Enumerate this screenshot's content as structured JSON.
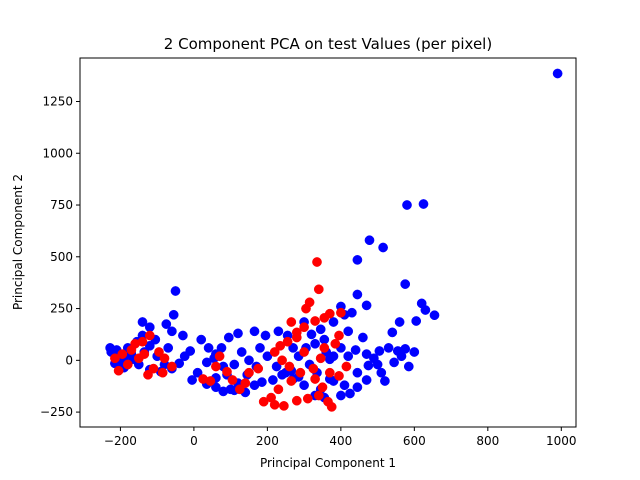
{
  "chart_data": {
    "type": "scatter",
    "title": "2 Component PCA on test Values (per pixel)",
    "xlabel": "Principal Component 1",
    "ylabel": "Principal Component 2",
    "xlim": [
      -310,
      1040
    ],
    "ylim": [
      -322,
      1460
    ],
    "xticks": [
      -200,
      0,
      200,
      400,
      600,
      800,
      1000
    ],
    "yticks": [
      -250,
      0,
      250,
      500,
      750,
      1000,
      1250
    ],
    "grid": false,
    "series": [
      {
        "color": "#0000ff",
        "points": [
          [
            990,
            1385
          ],
          [
            580,
            750
          ],
          [
            625,
            755
          ],
          [
            478,
            580
          ],
          [
            515,
            545
          ],
          [
            445,
            485
          ],
          [
            575,
            368
          ],
          [
            620,
            275
          ],
          [
            630,
            243
          ],
          [
            655,
            218
          ],
          [
            605,
            190
          ],
          [
            445,
            318
          ],
          [
            470,
            265
          ],
          [
            400,
            260
          ],
          [
            560,
            185
          ],
          [
            540,
            135
          ],
          [
            430,
            230
          ],
          [
            410,
            220
          ],
          [
            380,
            185
          ],
          [
            345,
            150
          ],
          [
            300,
            185
          ],
          [
            320,
            125
          ],
          [
            305,
            60
          ],
          [
            285,
            20
          ],
          [
            330,
            80
          ],
          [
            360,
            40
          ],
          [
            380,
            20
          ],
          [
            400,
            60
          ],
          [
            420,
            20
          ],
          [
            440,
            50
          ],
          [
            470,
            30
          ],
          [
            490,
            10
          ],
          [
            505,
            45
          ],
          [
            530,
            60
          ],
          [
            555,
            45
          ],
          [
            575,
            55
          ],
          [
            600,
            40
          ],
          [
            585,
            -30
          ],
          [
            510,
            -60
          ],
          [
            470,
            -95
          ],
          [
            445,
            -130
          ],
          [
            400,
            -170
          ],
          [
            380,
            -100
          ],
          [
            345,
            -140
          ],
          [
            300,
            -120
          ],
          [
            270,
            -90
          ],
          [
            250,
            -60
          ],
          [
            225,
            -30
          ],
          [
            200,
            20
          ],
          [
            180,
            60
          ],
          [
            170,
            -30
          ],
          [
            145,
            -70
          ],
          [
            120,
            -110
          ],
          [
            100,
            -140
          ],
          [
            90,
            -70
          ],
          [
            80,
            -30
          ],
          [
            60,
            30
          ],
          [
            40,
            60
          ],
          [
            35,
            -10
          ],
          [
            20,
            100
          ],
          [
            -10,
            45
          ],
          [
            -25,
            20
          ],
          [
            -40,
            -15
          ],
          [
            -60,
            -40
          ],
          [
            -80,
            -20
          ],
          [
            -100,
            20
          ],
          [
            -120,
            70
          ],
          [
            -140,
            120
          ],
          [
            -155,
            90
          ],
          [
            -170,
            30
          ],
          [
            -190,
            10
          ],
          [
            -210,
            50
          ],
          [
            -225,
            40
          ],
          [
            -228,
            60
          ],
          [
            -215,
            -15
          ],
          [
            -190,
            -35
          ],
          [
            -150,
            -20
          ],
          [
            -120,
            -45
          ],
          [
            -90,
            -55
          ],
          [
            -70,
            60
          ],
          [
            -60,
            140
          ],
          [
            -120,
            160
          ],
          [
            -140,
            185
          ],
          [
            -75,
            175
          ],
          [
            -50,
            335
          ],
          [
            -55,
            220
          ],
          [
            -30,
            120
          ],
          [
            10,
            -60
          ],
          [
            -5,
            -95
          ],
          [
            35,
            -115
          ],
          [
            60,
            -130
          ],
          [
            80,
            -150
          ],
          [
            110,
            -145
          ],
          [
            140,
            -155
          ],
          [
            165,
            -120
          ],
          [
            185,
            -105
          ],
          [
            215,
            -95
          ],
          [
            240,
            -70
          ],
          [
            265,
            -50
          ],
          [
            285,
            -80
          ],
          [
            330,
            -170
          ],
          [
            355,
            -180
          ],
          [
            425,
            -160
          ],
          [
            520,
            -100
          ],
          [
            475,
            -25
          ],
          [
            370,
            5
          ],
          [
            255,
            120
          ],
          [
            230,
            140
          ],
          [
            195,
            120
          ],
          [
            165,
            140
          ],
          [
            120,
            130
          ],
          [
            95,
            110
          ],
          [
            75,
            60
          ],
          [
            55,
            10
          ],
          [
            130,
            40
          ],
          [
            150,
            0
          ],
          [
            110,
            -20
          ],
          [
            60,
            -85
          ],
          [
            -165,
            5
          ],
          [
            -200,
            -20
          ],
          [
            -180,
            60
          ],
          [
            -105,
            100
          ],
          [
            -135,
            40
          ],
          [
            270,
            60
          ],
          [
            315,
            -20
          ],
          [
            335,
            -60
          ],
          [
            370,
            -90
          ],
          [
            410,
            -120
          ],
          [
            445,
            -60
          ],
          [
            500,
            -20
          ],
          [
            545,
            -10
          ],
          [
            565,
            20
          ],
          [
            460,
            110
          ],
          [
            420,
            140
          ],
          [
            355,
            100
          ]
        ]
      },
      {
        "color": "#ff0000",
        "points": [
          [
            335,
            475
          ],
          [
            340,
            343
          ],
          [
            315,
            280
          ],
          [
            305,
            250
          ],
          [
            370,
            225
          ],
          [
            400,
            230
          ],
          [
            355,
            205
          ],
          [
            330,
            190
          ],
          [
            300,
            160
          ],
          [
            265,
            185
          ],
          [
            280,
            110
          ],
          [
            255,
            90
          ],
          [
            235,
            70
          ],
          [
            220,
            40
          ],
          [
            240,
            0
          ],
          [
            260,
            -30
          ],
          [
            290,
            -60
          ],
          [
            265,
            -100
          ],
          [
            230,
            -140
          ],
          [
            210,
            -180
          ],
          [
            190,
            -200
          ],
          [
            220,
            -215
          ],
          [
            245,
            -220
          ],
          [
            280,
            -195
          ],
          [
            310,
            -185
          ],
          [
            340,
            -170
          ],
          [
            365,
            -200
          ],
          [
            375,
            -225
          ],
          [
            330,
            -90
          ],
          [
            325,
            -40
          ],
          [
            345,
            10
          ],
          [
            355,
            60
          ],
          [
            385,
            80
          ],
          [
            395,
            120
          ],
          [
            370,
            -60
          ],
          [
            350,
            -130
          ],
          [
            175,
            -40
          ],
          [
            150,
            -60
          ],
          [
            140,
            -110
          ],
          [
            125,
            -140
          ],
          [
            105,
            -95
          ],
          [
            90,
            -55
          ],
          [
            70,
            20
          ],
          [
            60,
            -30
          ],
          [
            45,
            -100
          ],
          [
            25,
            -90
          ],
          [
            -60,
            -30
          ],
          [
            -85,
            -60
          ],
          [
            -110,
            -40
          ],
          [
            -125,
            -70
          ],
          [
            -135,
            30
          ],
          [
            -150,
            10
          ],
          [
            -160,
            80
          ],
          [
            -170,
            50
          ],
          [
            -180,
            -20
          ],
          [
            -195,
            30
          ],
          [
            -205,
            -50
          ],
          [
            -215,
            10
          ],
          [
            -120,
            120
          ],
          [
            -140,
            90
          ],
          [
            -95,
            40
          ],
          [
            -80,
            10
          ],
          [
            395,
            -75
          ],
          [
            415,
            -30
          ],
          [
            300,
            40
          ],
          [
            280,
            135
          ]
        ]
      }
    ]
  }
}
